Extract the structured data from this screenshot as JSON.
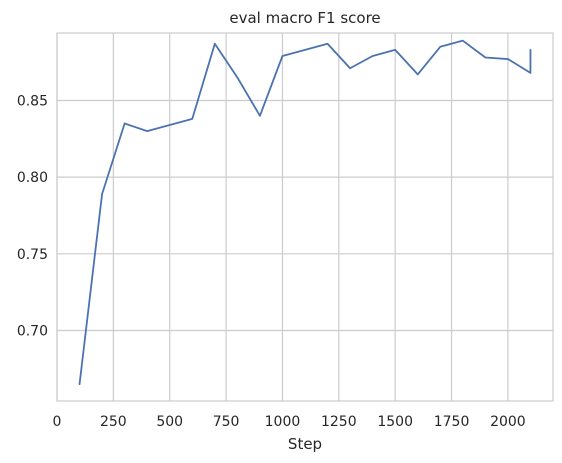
{
  "chart_data": {
    "type": "line",
    "title": "eval macro F1 score",
    "xlabel": "Step",
    "ylabel": "",
    "xlim": [
      0,
      2200
    ],
    "ylim": [
      0.654,
      0.894
    ],
    "xticks": [
      0,
      250,
      500,
      750,
      1000,
      1250,
      1500,
      1750,
      2000
    ],
    "xtick_labels": [
      "0",
      "250",
      "500",
      "750",
      "1000",
      "1250",
      "1500",
      "1750",
      "2000"
    ],
    "yticks": [
      0.7,
      0.75,
      0.8,
      0.85
    ],
    "ytick_labels": [
      "0.70",
      "0.75",
      "0.80",
      "0.85"
    ],
    "grid": true,
    "series": [
      {
        "color": "#4c72b0",
        "x": [
          100,
          200,
          300,
          400,
          500,
          600,
          700,
          800,
          900,
          1000,
          1100,
          1200,
          1300,
          1400,
          1500,
          1600,
          1700,
          1800,
          1900,
          2000,
          2100,
          2100
        ],
        "y": [
          0.665,
          0.789,
          0.835,
          0.83,
          0.834,
          0.838,
          0.887,
          0.865,
          0.84,
          0.879,
          0.883,
          0.887,
          0.871,
          0.879,
          0.883,
          0.867,
          0.885,
          0.889,
          0.878,
          0.877,
          0.868,
          0.883
        ]
      }
    ]
  }
}
